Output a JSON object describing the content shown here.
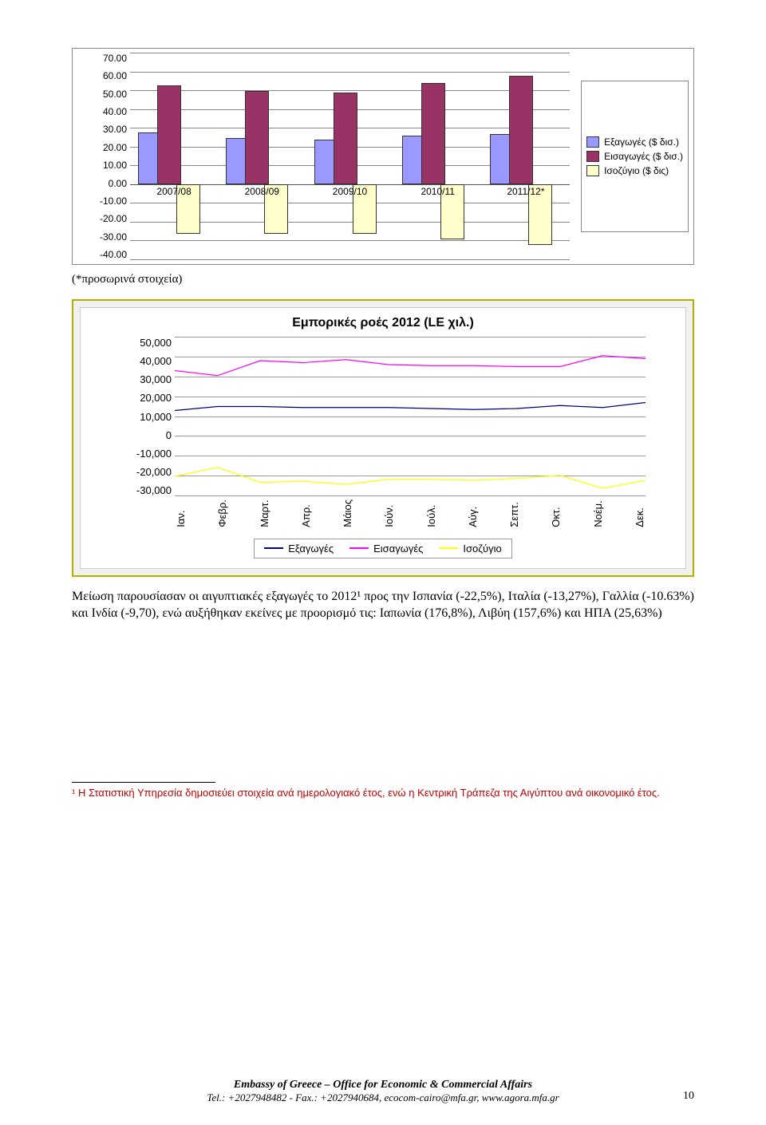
{
  "chart1": {
    "type": "bar",
    "ylim": [
      -40,
      70
    ],
    "ytick_step": 10,
    "yticks": [
      "70.00",
      "60.00",
      "50.00",
      "40.00",
      "30.00",
      "20.00",
      "10.00",
      "0.00",
      "-10.00",
      "-20.00",
      "-30.00",
      "-40.00"
    ],
    "zero_y": 70,
    "categories": [
      "2007/08",
      "2008/09",
      "2009/10",
      "2010/11",
      "2011/12*"
    ],
    "series": [
      {
        "name": "exports",
        "label": "Εξαγωγές ($ δισ.)",
        "color": "#9999ff",
        "values": [
          27,
          24,
          23,
          25,
          26
        ]
      },
      {
        "name": "imports",
        "label": "Εισαγωγές ($ δισ.)",
        "color": "#993366",
        "values": [
          52,
          49,
          48,
          53,
          57
        ]
      },
      {
        "name": "balance",
        "label": "Ισοζύγιο ($ δις)",
        "color": "#ffffcc",
        "values": [
          -25,
          -25,
          -25,
          -28,
          -31
        ]
      }
    ]
  },
  "provisional_note": "(*προσωρινά στοιχεία)",
  "chart2": {
    "type": "line",
    "title": "Εμπορικές ροές 2012 (LE χιλ.)",
    "ylim": [
      -30000,
      50000
    ],
    "ytick_step": 10000,
    "yticks": [
      "50,000",
      "40,000",
      "30,000",
      "20,000",
      "10,000",
      "0",
      "-10,000",
      "-20,000",
      "-30,000"
    ],
    "months": [
      "Ιαν.",
      "Φεβρ.",
      "Μαρτ.",
      "Απρ.",
      "Μάιος",
      "Ιούν.",
      "Ιούλ.",
      "Αύγ.",
      "Σεπτ.",
      "Οκτ.",
      "Νοέμ.",
      "Δεκ."
    ],
    "series": [
      {
        "name": "exports",
        "label": "Εξαγωγές",
        "color": "#000080",
        "values": [
          13000,
          15000,
          15000,
          14500,
          14500,
          14500,
          14000,
          13500,
          14000,
          15500,
          14500,
          17000
        ]
      },
      {
        "name": "imports",
        "label": "Εισαγωγές",
        "color": "#ff00ff",
        "values": [
          33000,
          30500,
          38000,
          37000,
          38500,
          36000,
          35500,
          35500,
          35000,
          35000,
          40500,
          39000
        ]
      },
      {
        "name": "balance",
        "label": "Ισοζύγιο",
        "color": "#ffff00",
        "values": [
          -20000,
          -15500,
          -23000,
          -22500,
          -24000,
          -21500,
          -21500,
          -22000,
          -21000,
          -19500,
          -26000,
          -22000
        ]
      }
    ]
  },
  "body_text": "Μείωση παρουσίασαν οι αιγυπτιακές εξαγωγές το 2012¹ προς την Ισπανία (-22,5%), Ιταλία (-13,27%), Γαλλία (-10.63%) και Ινδία (-9,70), ενώ αυξήθηκαν εκείνες με προορισμό τις: Ιαπωνία (176,8%), Λιβύη (157,6%) και ΗΠΑ (25,63%)",
  "footnote": "¹ Η Στατιστική Υπηρεσία δημοσιεύει στοιχεία ανά ημερολογιακό έτος, ενώ η Κεντρική Τράπεζα της Αιγύπτου ανά οικονομικό έτος.",
  "footer": {
    "title": "Embassy of Greece – Office for Economic & Commercial Affairs",
    "sub": "Tel.: +2027948482 - Fax.: +2027940684, ecocom-cairo@mfa.gr, www.agora.mfa.gr",
    "page": "10"
  }
}
